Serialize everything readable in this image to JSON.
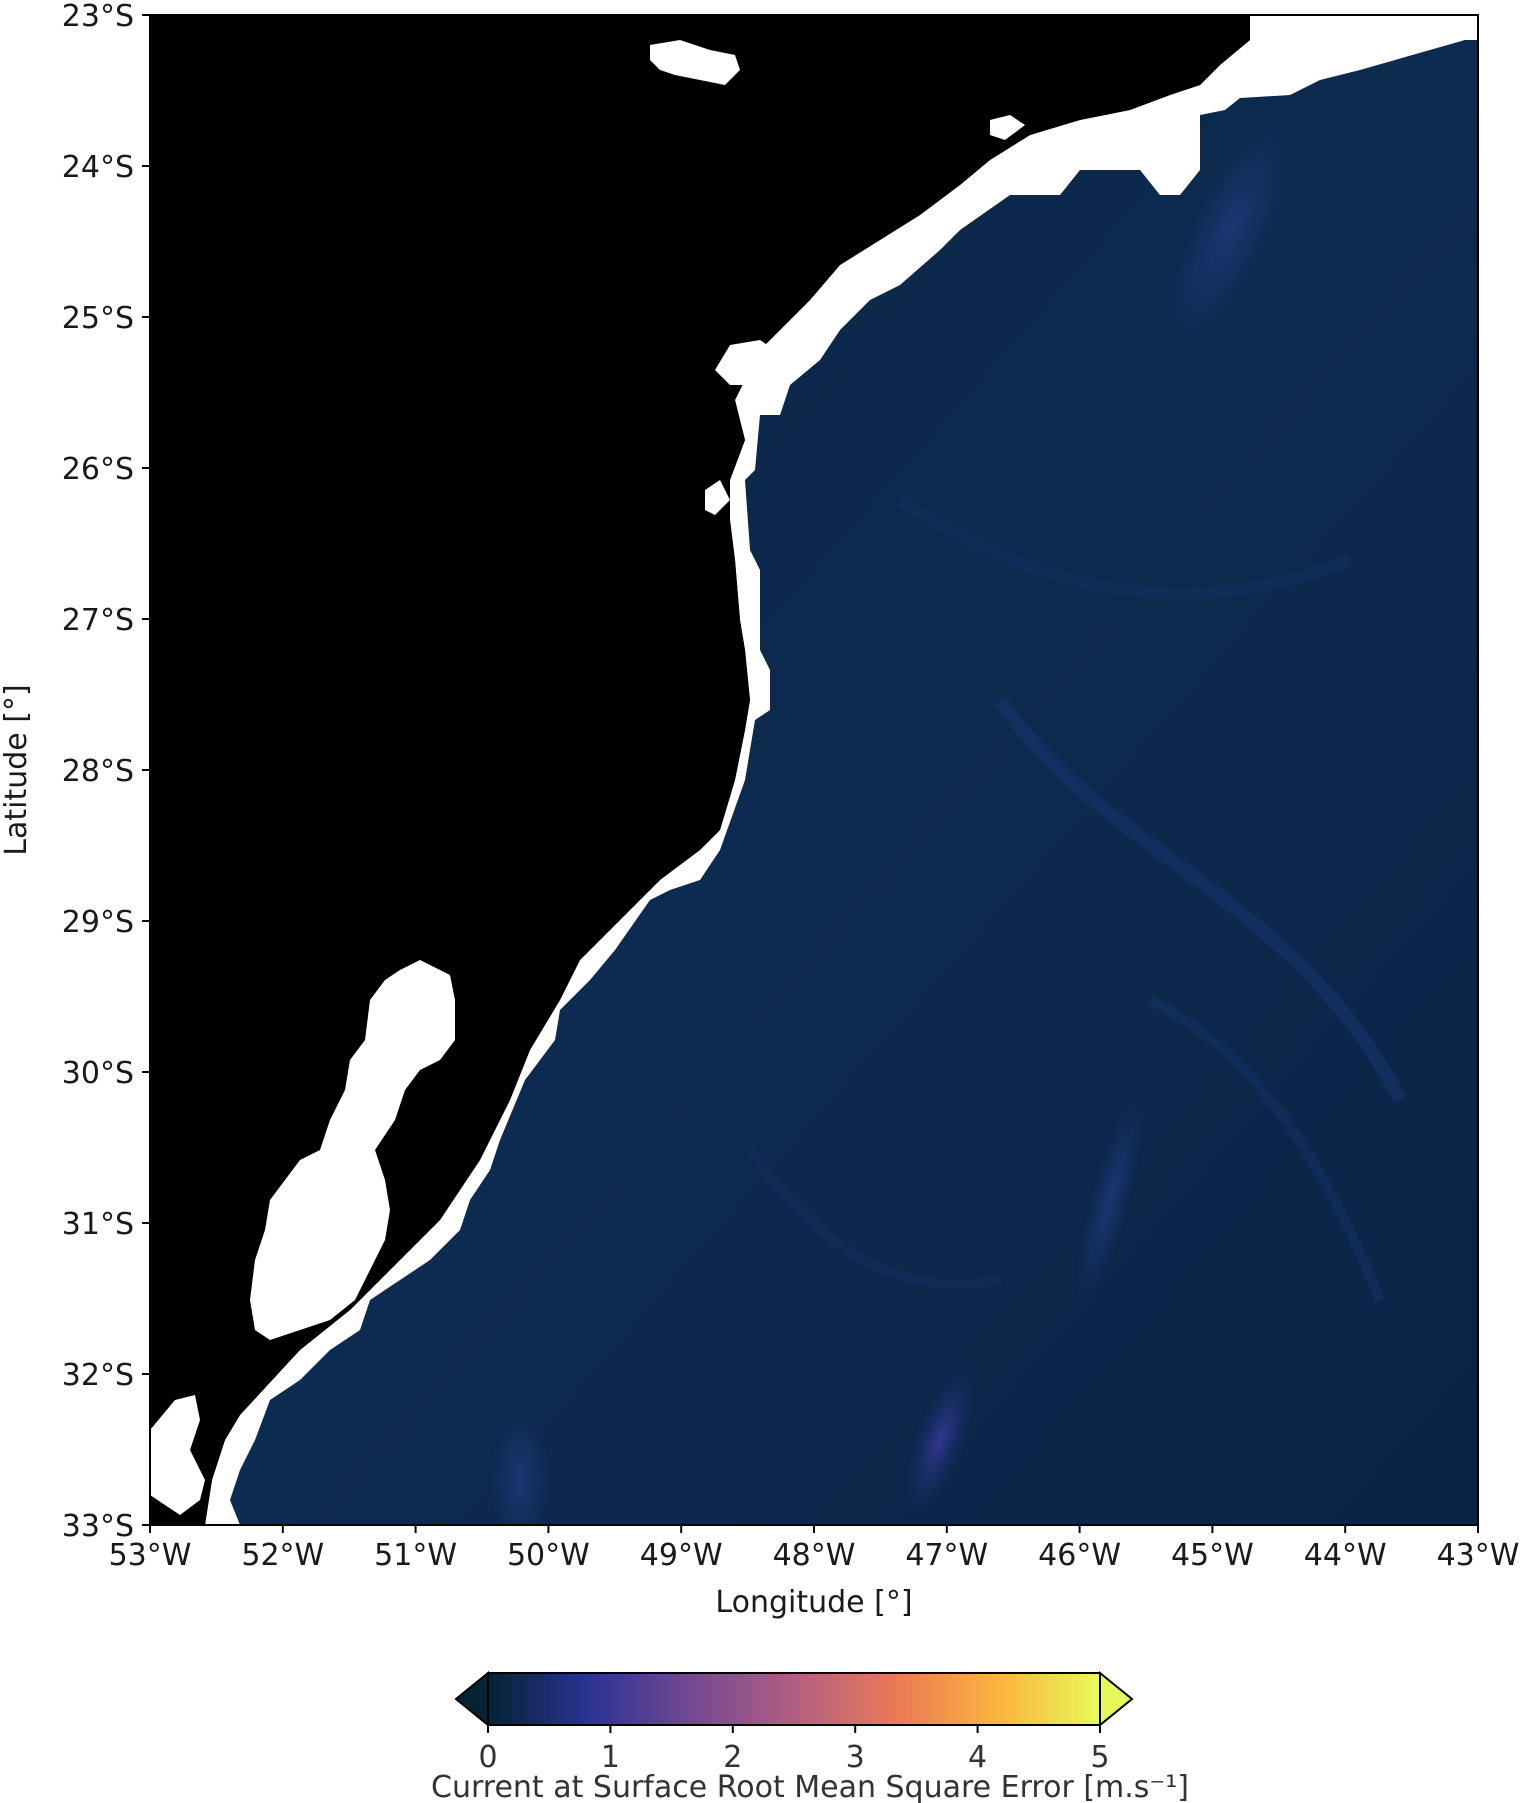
{
  "map": {
    "xlabel": "Longitude [°]",
    "ylabel": "Latitude [°]",
    "lon_range": [
      -53,
      -43
    ],
    "lat_range": [
      -33,
      -23
    ],
    "lon_ticks": [
      "53°W",
      "52°W",
      "51°W",
      "50°W",
      "49°W",
      "48°W",
      "47°W",
      "46°W",
      "45°W",
      "44°W",
      "43°W"
    ],
    "lat_ticks": [
      "23°S",
      "24°S",
      "25°S",
      "26°S",
      "27°S",
      "28°S",
      "29°S",
      "30°S",
      "31°S",
      "32°S",
      "33°S"
    ],
    "land_color": "#000000",
    "coast_mask_color": "#ffffff",
    "ocean_base_color": "#0b2445",
    "field_peak_value": 0.9,
    "field_peak_location": [
      -47.1,
      -32.7
    ]
  },
  "colorbar": {
    "label": "Current at Surface Root Mean Square Error [m.s⁻¹]",
    "min": 0,
    "max": 5,
    "ticks": [
      "0",
      "1",
      "2",
      "3",
      "4",
      "5"
    ],
    "extend": "both",
    "colormap": "thermal",
    "colors": [
      "#042333",
      "#2c3395",
      "#744992",
      "#b15f82",
      "#eb7958",
      "#fbb43d",
      "#e8fa5b"
    ],
    "orientation": "horizontal",
    "position": "bottom"
  }
}
